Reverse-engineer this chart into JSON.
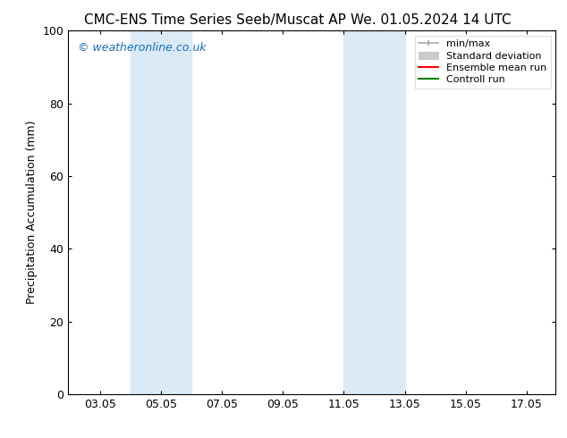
{
  "title_left": "CMC-ENS Time Series Seeb/Muscat AP",
  "title_right": "We. 01.05.2024 14 UTC",
  "ylabel": "Precipitation Accumulation (mm)",
  "watermark": "© weatheronline.co.uk",
  "xlim": [
    2.0,
    18.0
  ],
  "ylim": [
    0,
    100
  ],
  "yticks": [
    0,
    20,
    40,
    60,
    80,
    100
  ],
  "xticks": [
    3.05,
    5.05,
    7.05,
    9.05,
    11.05,
    13.05,
    15.05,
    17.05
  ],
  "xtick_labels": [
    "03.05",
    "05.05",
    "07.05",
    "09.05",
    "11.05",
    "13.05",
    "15.05",
    "17.05"
  ],
  "shaded_regions": [
    {
      "xmin": 4.05,
      "xmax": 6.05,
      "color": "#daeaf7"
    },
    {
      "xmin": 11.05,
      "xmax": 13.05,
      "color": "#daeaf7"
    }
  ],
  "legend_entries": [
    {
      "label": "min/max",
      "color": "#aaaaaa",
      "lw": 1.5,
      "style": "minmax"
    },
    {
      "label": "Standard deviation",
      "color": "#cccccc",
      "lw": 6,
      "style": "std"
    },
    {
      "label": "Ensemble mean run",
      "color": "#ff0000",
      "lw": 1.5,
      "style": "line"
    },
    {
      "label": "Controll run",
      "color": "#008000",
      "lw": 1.5,
      "style": "line"
    }
  ],
  "background_color": "#ffffff",
  "title_fontsize": 11,
  "axis_label_fontsize": 9,
  "tick_fontsize": 9,
  "watermark_color": "#1a6eb5",
  "watermark_fontsize": 9
}
